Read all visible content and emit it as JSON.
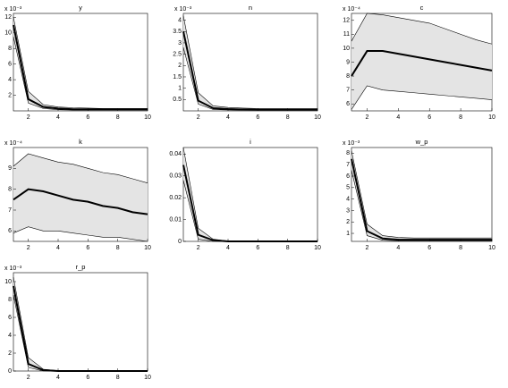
{
  "chart_data": [
    {
      "type": "line",
      "title": "y",
      "y_multiplier": "x 10⁻³",
      "x": [
        1,
        2,
        3,
        4,
        5,
        6,
        7,
        8,
        9,
        10
      ],
      "xlim": [
        1,
        10
      ],
      "xticks": [
        2,
        4,
        6,
        8,
        10
      ],
      "ylim": [
        0,
        12.5
      ],
      "yticks": [
        2,
        4,
        6,
        8,
        10,
        12
      ],
      "color": "#000000",
      "band_color": "#e4e4e4",
      "values": [
        11,
        1.5,
        0.5,
        0.3,
        0.2,
        0.2,
        0.2,
        0.2,
        0.2,
        0.2
      ],
      "band": {
        "upper": [
          12,
          2.5,
          0.8,
          0.5,
          0.4,
          0.35,
          0.3,
          0.3,
          0.3,
          0.3
        ],
        "lower": [
          9.5,
          1,
          0.3,
          0.15,
          0.1,
          0.1,
          0.1,
          0.1,
          0.1,
          0.1
        ]
      }
    },
    {
      "type": "line",
      "title": "n",
      "y_multiplier": "x 10⁻³",
      "x": [
        1,
        2,
        3,
        4,
        5,
        6,
        7,
        8,
        9,
        10
      ],
      "xlim": [
        1,
        10
      ],
      "xticks": [
        2,
        4,
        6,
        8,
        10
      ],
      "ylim": [
        0,
        4.3
      ],
      "yticks": [
        0.5,
        1,
        1.5,
        2,
        2.5,
        3,
        3.5,
        4
      ],
      "color": "#000000",
      "band_color": "#e4e4e4",
      "values": [
        3.5,
        0.45,
        0.12,
        0.08,
        0.06,
        0.05,
        0.05,
        0.05,
        0.05,
        0.05
      ],
      "band": {
        "upper": [
          4.2,
          0.8,
          0.22,
          0.15,
          0.12,
          0.1,
          0.1,
          0.1,
          0.1,
          0.1
        ],
        "lower": [
          2.8,
          0.3,
          0.06,
          0.04,
          0.03,
          0.03,
          0.03,
          0.03,
          0.03,
          0.03
        ]
      }
    },
    {
      "type": "line",
      "title": "c",
      "y_multiplier": "x 10⁻⁴",
      "x": [
        1,
        2,
        3,
        4,
        5,
        6,
        7,
        8,
        9,
        10
      ],
      "xlim": [
        1,
        10
      ],
      "xticks": [
        2,
        4,
        6,
        8,
        10
      ],
      "ylim": [
        5.5,
        12.5
      ],
      "yticks": [
        6,
        7,
        8,
        9,
        10,
        11,
        12
      ],
      "color": "#000000",
      "band_color": "#e4e4e4",
      "values": [
        8,
        9.8,
        9.8,
        9.6,
        9.4,
        9.2,
        9,
        8.8,
        8.6,
        8.4
      ],
      "band": {
        "upper": [
          10.5,
          12.5,
          12.4,
          12.2,
          12,
          11.8,
          11.4,
          11,
          10.6,
          10.3
        ],
        "lower": [
          5.6,
          7.3,
          7,
          6.9,
          6.8,
          6.7,
          6.6,
          6.5,
          6.4,
          6.3
        ]
      }
    },
    {
      "type": "line",
      "title": "k",
      "y_multiplier": "x 10⁻⁴",
      "x": [
        1,
        2,
        3,
        4,
        5,
        6,
        7,
        8,
        9,
        10
      ],
      "xlim": [
        1,
        10
      ],
      "xticks": [
        2,
        4,
        6,
        8,
        10
      ],
      "ylim": [
        5.5,
        10
      ],
      "yticks": [
        6,
        7,
        8,
        9
      ],
      "color": "#000000",
      "band_color": "#e4e4e4",
      "values": [
        7.5,
        8,
        7.9,
        7.7,
        7.5,
        7.4,
        7.2,
        7.1,
        6.9,
        6.8
      ],
      "band": {
        "upper": [
          9.1,
          9.7,
          9.5,
          9.3,
          9.2,
          9,
          8.8,
          8.7,
          8.5,
          8.3
        ],
        "lower": [
          5.9,
          6.2,
          6,
          6,
          5.9,
          5.8,
          5.7,
          5.7,
          5.6,
          5.5
        ]
      }
    },
    {
      "type": "line",
      "title": "i",
      "x": [
        1,
        2,
        3,
        4,
        5,
        6,
        7,
        8,
        9,
        10
      ],
      "xlim": [
        1,
        10
      ],
      "xticks": [
        2,
        4,
        6,
        8,
        10
      ],
      "ylim": [
        0,
        0.043
      ],
      "yticks": [
        0,
        0.01,
        0.02,
        0.03,
        0.04
      ],
      "color": "#000000",
      "band_color": "#e4e4e4",
      "values": [
        0.035,
        0.003,
        0.0005,
        0,
        0,
        0,
        0,
        0,
        0,
        0
      ],
      "band": {
        "upper": [
          0.043,
          0.006,
          0.001,
          0.0002,
          0,
          0,
          0,
          0,
          0,
          0
        ],
        "lower": [
          0.028,
          0.001,
          0,
          0,
          0,
          0,
          0,
          0,
          0,
          0
        ]
      }
    },
    {
      "type": "line",
      "title": "w_p",
      "y_multiplier": "x 10⁻³",
      "x": [
        1,
        2,
        3,
        4,
        5,
        6,
        7,
        8,
        9,
        10
      ],
      "xlim": [
        1,
        10
      ],
      "xticks": [
        2,
        4,
        6,
        8,
        10
      ],
      "ylim": [
        0.3,
        8.5
      ],
      "yticks": [
        1,
        2,
        3,
        4,
        5,
        6,
        7,
        8
      ],
      "color": "#000000",
      "band_color": "#e4e4e4",
      "values": [
        7.5,
        1.2,
        0.55,
        0.45,
        0.45,
        0.45,
        0.45,
        0.45,
        0.45,
        0.45
      ],
      "band": {
        "upper": [
          8.2,
          1.8,
          0.8,
          0.65,
          0.6,
          0.6,
          0.6,
          0.6,
          0.6,
          0.6
        ],
        "lower": [
          6.5,
          0.8,
          0.4,
          0.35,
          0.35,
          0.35,
          0.35,
          0.35,
          0.35,
          0.35
        ]
      }
    },
    {
      "type": "line",
      "title": "r_p",
      "y_multiplier": "x 10⁻³",
      "x": [
        1,
        2,
        3,
        4,
        5,
        6,
        7,
        8,
        9,
        10
      ],
      "xlim": [
        1,
        10
      ],
      "xticks": [
        2,
        4,
        6,
        8,
        10
      ],
      "ylim": [
        0,
        11
      ],
      "yticks": [
        0,
        2,
        4,
        6,
        8,
        10
      ],
      "color": "#000000",
      "band_color": "#e4e4e4",
      "values": [
        9.5,
        0.8,
        0.1,
        0,
        0,
        0,
        0,
        0,
        0,
        0
      ],
      "band": {
        "upper": [
          10.5,
          1.5,
          0.2,
          0.05,
          0,
          0,
          0,
          0,
          0,
          0
        ],
        "lower": [
          8.5,
          0.4,
          0,
          0,
          0,
          0,
          0,
          0,
          0,
          0
        ]
      }
    }
  ]
}
